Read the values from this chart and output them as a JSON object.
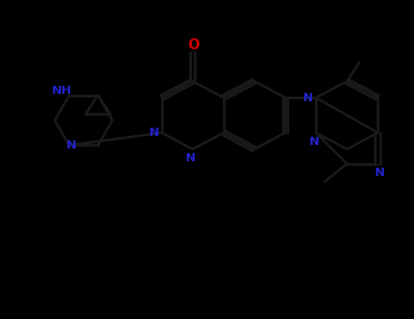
{
  "bg_color": "#000000",
  "bond_color": "#1a1a1a",
  "n_color": "#2222cc",
  "o_color": "#cc0000",
  "line_width": 2.0,
  "figsize": [
    4.55,
    3.5
  ],
  "dpi": 100,
  "xlim": [
    -4.8,
    5.2
  ],
  "ylim": [
    -3.2,
    3.0
  ]
}
